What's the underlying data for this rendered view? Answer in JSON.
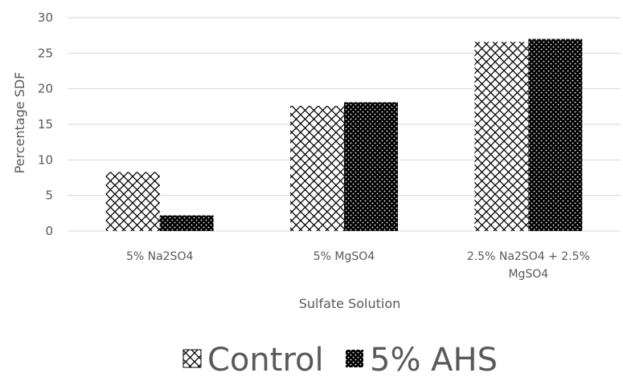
{
  "chart_data": {
    "type": "bar",
    "categories": [
      [
        "5% Na2SO4"
      ],
      [
        "5% MgSO4"
      ],
      [
        "2.5% Na2SO4 + 2.5%",
        "MgSO4"
      ]
    ],
    "series": [
      {
        "name": "Control",
        "values": [
          8.3,
          17.6,
          26.6
        ],
        "pattern": "crosshatch",
        "color": "#000000"
      },
      {
        "name": "5% AHS",
        "values": [
          2.2,
          18.1,
          27.0
        ],
        "pattern": "dots",
        "color": "#000000"
      }
    ],
    "title": "",
    "xlabel": "Sulfate Solution",
    "ylabel": "Percentage SDF",
    "ylim": [
      0,
      30
    ],
    "yticks": [
      0,
      5,
      10,
      15,
      20,
      25,
      30
    ],
    "grid": true,
    "legend_position": "bottom"
  }
}
